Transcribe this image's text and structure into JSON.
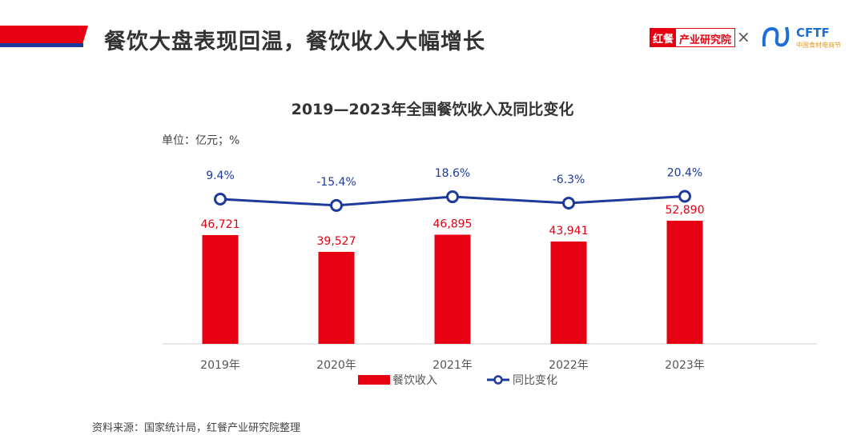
{
  "header": {
    "title": "餐饮大盘表现回温，餐饮收入大幅增长",
    "logo_left_a": "红餐",
    "logo_left_b": "产业研究院",
    "times": "×",
    "logo_right": "CFTF",
    "logo_right_sub": "中国食材电商节"
  },
  "unit_label": "单位：亿元；%",
  "source": "资料来源：国家统计局，红餐产业研究院整理",
  "colors": {
    "bar": "#e60012",
    "line": "#1d3a9c",
    "accent_blue": "#1d3a9c"
  },
  "chart_data": {
    "type": "bar+line",
    "title": "2019—2023年全国餐饮收入及同比变化",
    "categories": [
      "2019年",
      "2020年",
      "2021年",
      "2022年",
      "2023年"
    ],
    "series": [
      {
        "name": "餐饮收入",
        "type": "bar",
        "values": [
          46721,
          39527,
          46895,
          43941,
          52890
        ],
        "labels": [
          "46,721",
          "39,527",
          "46,895",
          "43,941",
          "52,890"
        ]
      },
      {
        "name": "同比变化",
        "type": "line",
        "values": [
          9.4,
          -15.4,
          18.6,
          -6.3,
          20.4
        ],
        "labels": [
          "9.4%",
          "-15.4%",
          "18.6%",
          "-6.3%",
          "20.4%"
        ]
      }
    ],
    "legend": "bottom",
    "grid": false
  }
}
